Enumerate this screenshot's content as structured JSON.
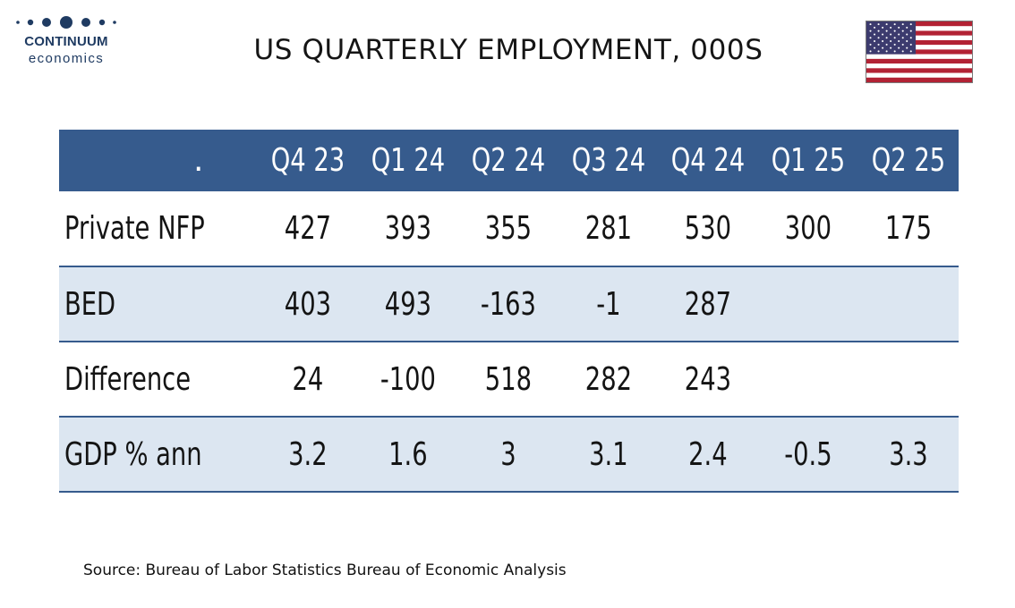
{
  "logo": {
    "word": "CONTINUUM",
    "sub": "economics",
    "color": "#1f3b62"
  },
  "title": "US QUARTERLY EMPLOYMENT, 000S",
  "flag": {
    "icon": "us-flag-icon",
    "red": "#b22234",
    "blue": "#3c3b6e",
    "white": "#ffffff"
  },
  "table": {
    "header_color": "#365b8d",
    "band_color": "#dce6f1",
    "corner_label": ".",
    "columns": [
      "Q4 23",
      "Q1 24",
      "Q2 24",
      "Q3 24",
      "Q4 24",
      "Q1 25",
      "Q2 25"
    ],
    "rows": [
      {
        "label": "Private NFP",
        "values": [
          "427",
          "393",
          "355",
          "281",
          "530",
          "300",
          "175"
        ]
      },
      {
        "label": "BED",
        "values": [
          "403",
          "493",
          "-163",
          "-1",
          "287",
          "",
          ""
        ]
      },
      {
        "label": "Difference",
        "values": [
          "24",
          "-100",
          "518",
          "282",
          "243",
          "",
          ""
        ]
      },
      {
        "label": "GDP % ann",
        "values": [
          "3.2",
          "1.6",
          "3",
          "3.1",
          "2.4",
          "-0.5",
          "3.3"
        ]
      }
    ]
  },
  "source": "Source: Bureau of Labor Statistics Bureau of Economic Analysis"
}
